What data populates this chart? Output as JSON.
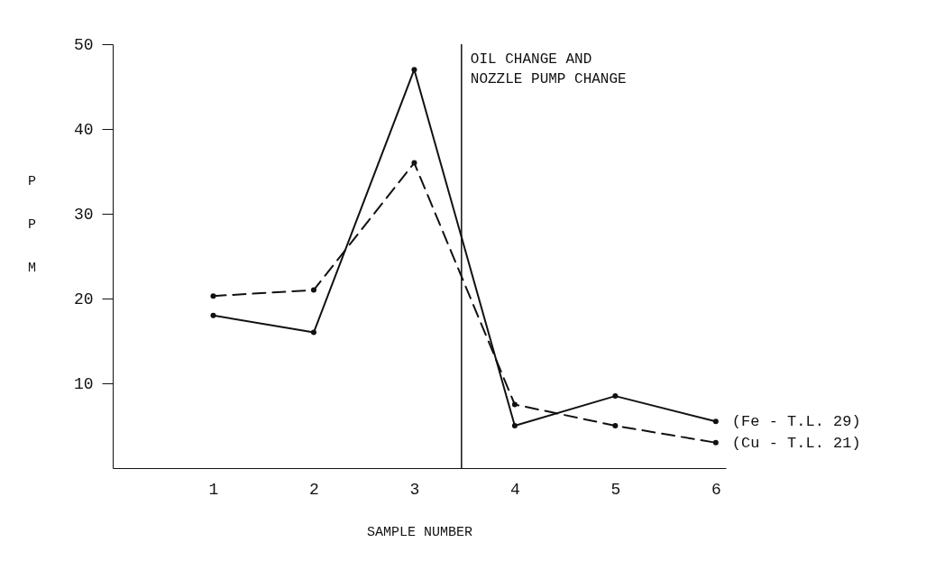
{
  "chart_data": {
    "type": "line",
    "xlabel": "SAMPLE NUMBER",
    "ylabel": "PPM",
    "x": [
      1,
      2,
      3,
      4,
      5,
      6
    ],
    "xlim": [
      0,
      6.1
    ],
    "xticks": [
      1,
      2,
      3,
      4,
      5,
      6
    ],
    "ylim": [
      0,
      50
    ],
    "yticks": [
      10,
      20,
      30,
      40,
      50
    ],
    "grid": false,
    "marker": "circle",
    "series": [
      {
        "name": "(Fe - T.L. 29)",
        "color": "#111111",
        "line_style": "solid",
        "values": [
          18,
          16,
          47,
          5,
          8.5,
          5.5
        ]
      },
      {
        "name": "(Cu - T.L. 21)",
        "color": "#111111",
        "line_style": "dashed",
        "values": [
          20.3,
          21,
          36,
          7.5,
          5,
          3
        ]
      }
    ],
    "ref_lines": [
      {
        "axis": "x",
        "value": 3.47,
        "label": "OIL CHANGE AND\nNOZZLE PUMP CHANGE",
        "color": "#111111"
      }
    ]
  }
}
